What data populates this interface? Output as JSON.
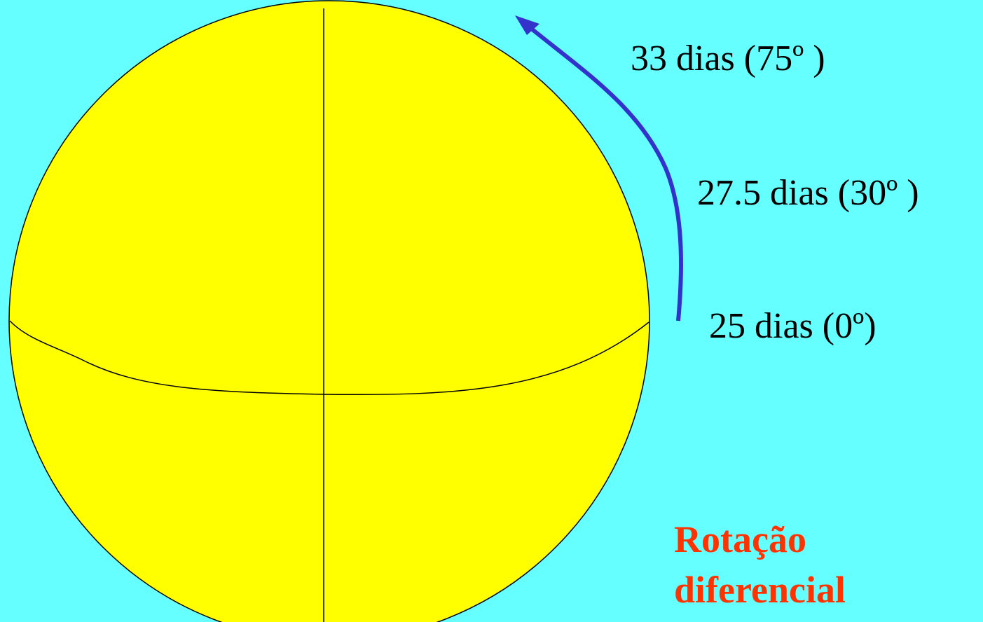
{
  "labels": [
    "33 dias (75º )",
    "27.5 dias (30º )",
    "25 dias (0º)"
  ],
  "title": {
    "line1": "Rotação",
    "line2": "diferencial"
  }
}
